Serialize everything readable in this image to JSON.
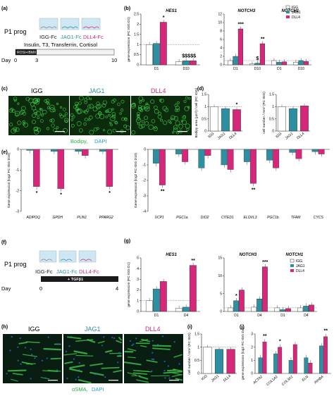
{
  "colors": {
    "igg": "#ffffff",
    "jag1": "#2e8fa3",
    "dll4": "#d6287a",
    "green": "#27b33c",
    "blue": "#1f9bd1"
  },
  "panels": {
    "a": {
      "label": "(a)",
      "head": "P1 prog",
      "groups": [
        "IGG-Fc",
        "JAG1-Fc",
        "DLL4-Fc"
      ],
      "medium": "Insulin, T3, Transferrin, Cortisol",
      "bar": "ROSI+IBMX",
      "day_label": "Day",
      "days": [
        "0",
        "3",
        "10"
      ]
    },
    "b": {
      "label": "(b)",
      "legend": [
        "IGG",
        "JAG1",
        "DLL4"
      ]
    },
    "c": {
      "label": "(c)",
      "titles": [
        "IGG",
        "JAG1",
        "DLL4"
      ],
      "stain_green": "Bodipy,",
      "stain_blue": "DAPI"
    },
    "d": {
      "label": "(d)"
    },
    "e": {
      "label": "(e)"
    },
    "f": {
      "label": "(f)",
      "head": "P1 prog",
      "groups": [
        "IGG-Fc",
        "JAG1-Fc",
        "DLL4-Fc"
      ],
      "bar": "+ TGFβ1",
      "day_label": "Day",
      "days": [
        "0",
        "4"
      ]
    },
    "g": {
      "label": "(g)",
      "legend": [
        "IGG",
        "JAG1",
        "DLL4"
      ]
    },
    "h": {
      "label": "(h)",
      "titles": [
        "IGG",
        "JAG1",
        "DLL4"
      ],
      "stain_green": "αSMA,",
      "stain_blue": "DAPI"
    },
    "i": {
      "label": "(i)"
    },
    "j": {
      "label": "(j)"
    }
  },
  "chart_data": [
    {
      "panel": "b",
      "type": "bar",
      "ylabel": "gene expression (FC IGG D1)",
      "ylim": [
        0,
        2.5
      ],
      "yticks": [
        0,
        0.5,
        1.0,
        1.5,
        2.0,
        2.5
      ],
      "gene_titles": [
        "HES1",
        "NOTCH3",
        "NOTCH1"
      ],
      "groups": [
        {
          "gene": "HES1",
          "day": "D1",
          "values": [
            1.0,
            1.05,
            2.1
          ],
          "marks": [
            "",
            "",
            "*"
          ]
        },
        {
          "gene": "HES1",
          "day": "D10",
          "values": [
            0.15,
            0.2,
            0.2
          ],
          "marks": [
            "",
            "$$$",
            "$$"
          ]
        }
      ]
    },
    {
      "panel": "b2",
      "type": "bar",
      "ylim": [
        0,
        12
      ],
      "yticks": [
        0,
        2,
        4,
        6,
        8,
        10,
        12
      ],
      "groups": [
        {
          "gene": "NOTCH3",
          "day": "D1",
          "values": [
            1.0,
            2.0,
            8.5
          ],
          "marks": [
            "",
            "",
            "***"
          ]
        },
        {
          "gene": "NOTCH3",
          "day": "D10",
          "values": [
            0.2,
            0.4,
            5.0
          ],
          "marks": [
            "",
            "$",
            "**"
          ]
        },
        {
          "gene": "NOTCH1",
          "day": "D1",
          "values": [
            1.0,
            0.6,
            0.7
          ],
          "marks": [
            "",
            "",
            ""
          ]
        },
        {
          "gene": "NOTCH1",
          "day": "D10",
          "values": [
            0.6,
            1.0,
            0.8
          ],
          "marks": [
            "",
            "",
            ""
          ]
        }
      ]
    },
    {
      "panel": "d",
      "type": "bar",
      "ylabel": "Bodipy area (µm²) / cell (FC IGG)",
      "ylim": [
        0,
        1.5
      ],
      "yticks": [
        0,
        0.5,
        1.0,
        1.5
      ],
      "categories": [
        "IGG",
        "JAG1",
        "DLL4"
      ],
      "values": [
        1.0,
        0.92,
        0.88
      ],
      "marks": [
        "",
        "",
        "*"
      ]
    },
    {
      "panel": "d2",
      "type": "bar",
      "ylabel": "cell number / mm² (FC IGG)",
      "ylim": [
        0,
        1.5
      ],
      "yticks": [
        0,
        0.5,
        1.0,
        1.5
      ],
      "categories": [
        "IGG",
        "JAG1",
        "DLL4"
      ],
      "values": [
        1.0,
        0.92,
        1.03
      ],
      "marks": [
        "",
        "",
        ""
      ]
    },
    {
      "panel": "e",
      "type": "bar",
      "ylabel": "Gene expression (log2 FC IGG D10)",
      "ylim": [
        -3,
        0
      ],
      "yticks": [
        0,
        -1,
        -2,
        -3
      ],
      "categories": [
        "ADIPOQ",
        "GPDH",
        "PLIN1",
        "PPARG2"
      ],
      "series": [
        {
          "values": [
            -0.05,
            -0.1,
            -0.1,
            -0.1
          ]
        },
        {
          "values": [
            -1.8,
            -1.9,
            -0.3,
            -1.8
          ]
        }
      ],
      "marks": [
        "*",
        "*",
        "",
        "*"
      ]
    },
    {
      "panel": "e2",
      "type": "bar",
      "ylabel": "Gene expression (log2 FC IGG D10)",
      "ylim": [
        -4,
        0
      ],
      "yticks": [
        0,
        -1,
        -2,
        -3,
        -4
      ],
      "categories": [
        "UCP1",
        "PGC1a",
        "DIO2",
        "CITED1",
        "ELOVL3",
        "PGC1b",
        "TFAM",
        "CYCS"
      ],
      "series": [
        {
          "values": [
            -0.9,
            -0.3,
            -1.2,
            -1.0,
            -0.8,
            -0.7,
            -0.2,
            -0.15
          ]
        },
        {
          "values": [
            -2.3,
            -0.8,
            -0.4,
            -1.3,
            -2.2,
            -1.2,
            -0.6,
            -0.3
          ]
        }
      ],
      "marks": [
        "**",
        "",
        "",
        "",
        "**",
        "",
        "",
        ""
      ]
    },
    {
      "panel": "g",
      "type": "bar",
      "ylabel": "gene expression (FC IGG D1)",
      "ylim": [
        0,
        5
      ],
      "yticks": [
        0,
        1,
        2,
        3,
        4,
        5
      ],
      "gene_titles": [
        "HES1",
        "NOTCH3",
        "NOTCH1"
      ],
      "groups": [
        {
          "gene": "HES1",
          "day": "D1",
          "values": [
            1.0,
            2.1,
            2.8
          ],
          "marks": [
            "",
            "",
            ""
          ]
        },
        {
          "gene": "HES1",
          "day": "D4",
          "values": [
            0.3,
            0.4,
            4.3
          ],
          "marks": [
            "",
            "",
            "**"
          ]
        }
      ]
    },
    {
      "panel": "g2",
      "type": "bar",
      "ylim": [
        0,
        15
      ],
      "yticks": [
        0,
        5,
        10,
        15
      ],
      "groups": [
        {
          "gene": "NOTCH3",
          "day": "D1",
          "values": [
            1.0,
            3.0,
            6.0
          ],
          "marks": [
            "",
            "*",
            ""
          ]
        },
        {
          "gene": "NOTCH3",
          "day": "D4",
          "values": [
            1.2,
            3.5,
            12.5
          ],
          "marks": [
            "",
            "",
            "***"
          ]
        },
        {
          "gene": "NOTCH1",
          "day": "D1",
          "values": [
            1.0,
            0.5,
            0.8
          ],
          "marks": [
            "",
            "",
            ""
          ]
        },
        {
          "gene": "NOTCH1",
          "day": "D4",
          "values": [
            1.0,
            1.5,
            1.8
          ],
          "marks": [
            "",
            "",
            ""
          ]
        }
      ]
    },
    {
      "panel": "i",
      "type": "bar",
      "ylabel": "cell number / mm² (FC IGG)",
      "ylim": [
        0,
        1.5
      ],
      "yticks": [
        0,
        0.5,
        1.0,
        1.5
      ],
      "categories": [
        "IGG",
        "JAG1",
        "DLL4"
      ],
      "values": [
        1.0,
        0.92,
        0.92
      ],
      "marks": [
        "",
        "",
        ""
      ]
    },
    {
      "panel": "j",
      "type": "bar",
      "ylabel": "gene expression (log2 FC IGG D4)",
      "ylim": [
        0,
        3
      ],
      "yticks": [
        0,
        1,
        2,
        3
      ],
      "categories": [
        "ACTA2",
        "COL1A1",
        "COL3A1",
        "ELN",
        "INHBA"
      ],
      "series": [
        {
          "values": [
            1.2,
            1.5,
            1.0,
            1.2,
            2.1
          ]
        },
        {
          "values": [
            2.4,
            2.0,
            2.2,
            0.8,
            2.8
          ]
        }
      ],
      "marks": [
        "**",
        "*",
        "",
        "",
        "**"
      ]
    }
  ]
}
